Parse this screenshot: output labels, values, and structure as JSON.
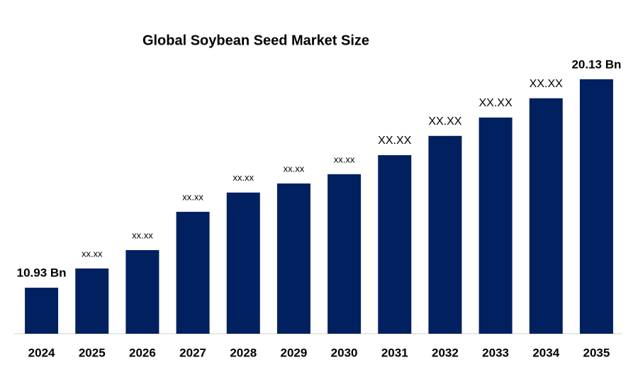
{
  "chart_data": {
    "type": "bar",
    "title": "Global Soybean Seed Market Size",
    "categories": [
      "2024",
      "2025",
      "2026",
      "2027",
      "2028",
      "2029",
      "2030",
      "2031",
      "2032",
      "2033",
      "2034",
      "2035"
    ],
    "values": [
      10.93,
      11.78,
      12.59,
      14.28,
      15.13,
      15.53,
      15.94,
      16.78,
      17.63,
      18.44,
      19.29,
      20.13
    ],
    "value_labels": [
      "10.93 Bn",
      "xx.xx",
      "xx.xx",
      "xx.xx",
      "xx.xx",
      "xx.xx",
      "xx.xx",
      "XX.XX",
      "XX.XX",
      "XX.XX",
      "XX.XX",
      "20.13 Bn"
    ],
    "color": "#002060",
    "ylim": [
      8.9,
      22.0
    ]
  }
}
